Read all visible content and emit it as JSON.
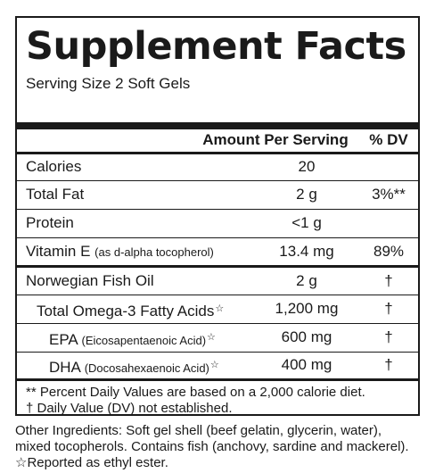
{
  "title": "Supplement Facts",
  "serving_size": "Serving Size 2 Soft Gels",
  "header": {
    "amount": "Amount Per Serving",
    "dv": "% DV"
  },
  "rows": [
    {
      "name": "Calories",
      "note": "",
      "star": "",
      "amount": "20",
      "dv": ""
    },
    {
      "name": "Total Fat",
      "note": "",
      "star": "",
      "amount": "2 g",
      "dv": "3%**"
    },
    {
      "name": "Protein",
      "note": "",
      "star": "",
      "amount": "<1 g",
      "dv": ""
    },
    {
      "name": "Vitamin E ",
      "note": "(as d-alpha tocopherol)",
      "star": "",
      "amount": "13.4 mg",
      "dv": "89%"
    },
    {
      "name": "Norwegian Fish Oil",
      "note": "",
      "star": "",
      "amount": "2 g",
      "dv": "†"
    },
    {
      "name": "Total Omega-3 Fatty Acids",
      "note": "",
      "star": "☆",
      "amount": "1,200 mg",
      "dv": "†"
    },
    {
      "name": "EPA ",
      "note": "(Eicosapentaenoic Acid)",
      "star": "☆",
      "amount": "600 mg",
      "dv": "†"
    },
    {
      "name": "DHA ",
      "note": "(Docosahexaenoic Acid)",
      "star": "☆",
      "amount": "400 mg",
      "dv": "†"
    }
  ],
  "footnotes": [
    "** Percent Daily Values are based on a 2,000 calorie diet.",
    "† Daily Value (DV) not established."
  ],
  "other_ingredients": [
    "Other Ingredients: Soft gel shell (beef gelatin, glycerin, water),",
    "mixed tocopherols. Contains fish (anchovy, sardine and mackerel).",
    "☆Reported as ethyl ester."
  ]
}
